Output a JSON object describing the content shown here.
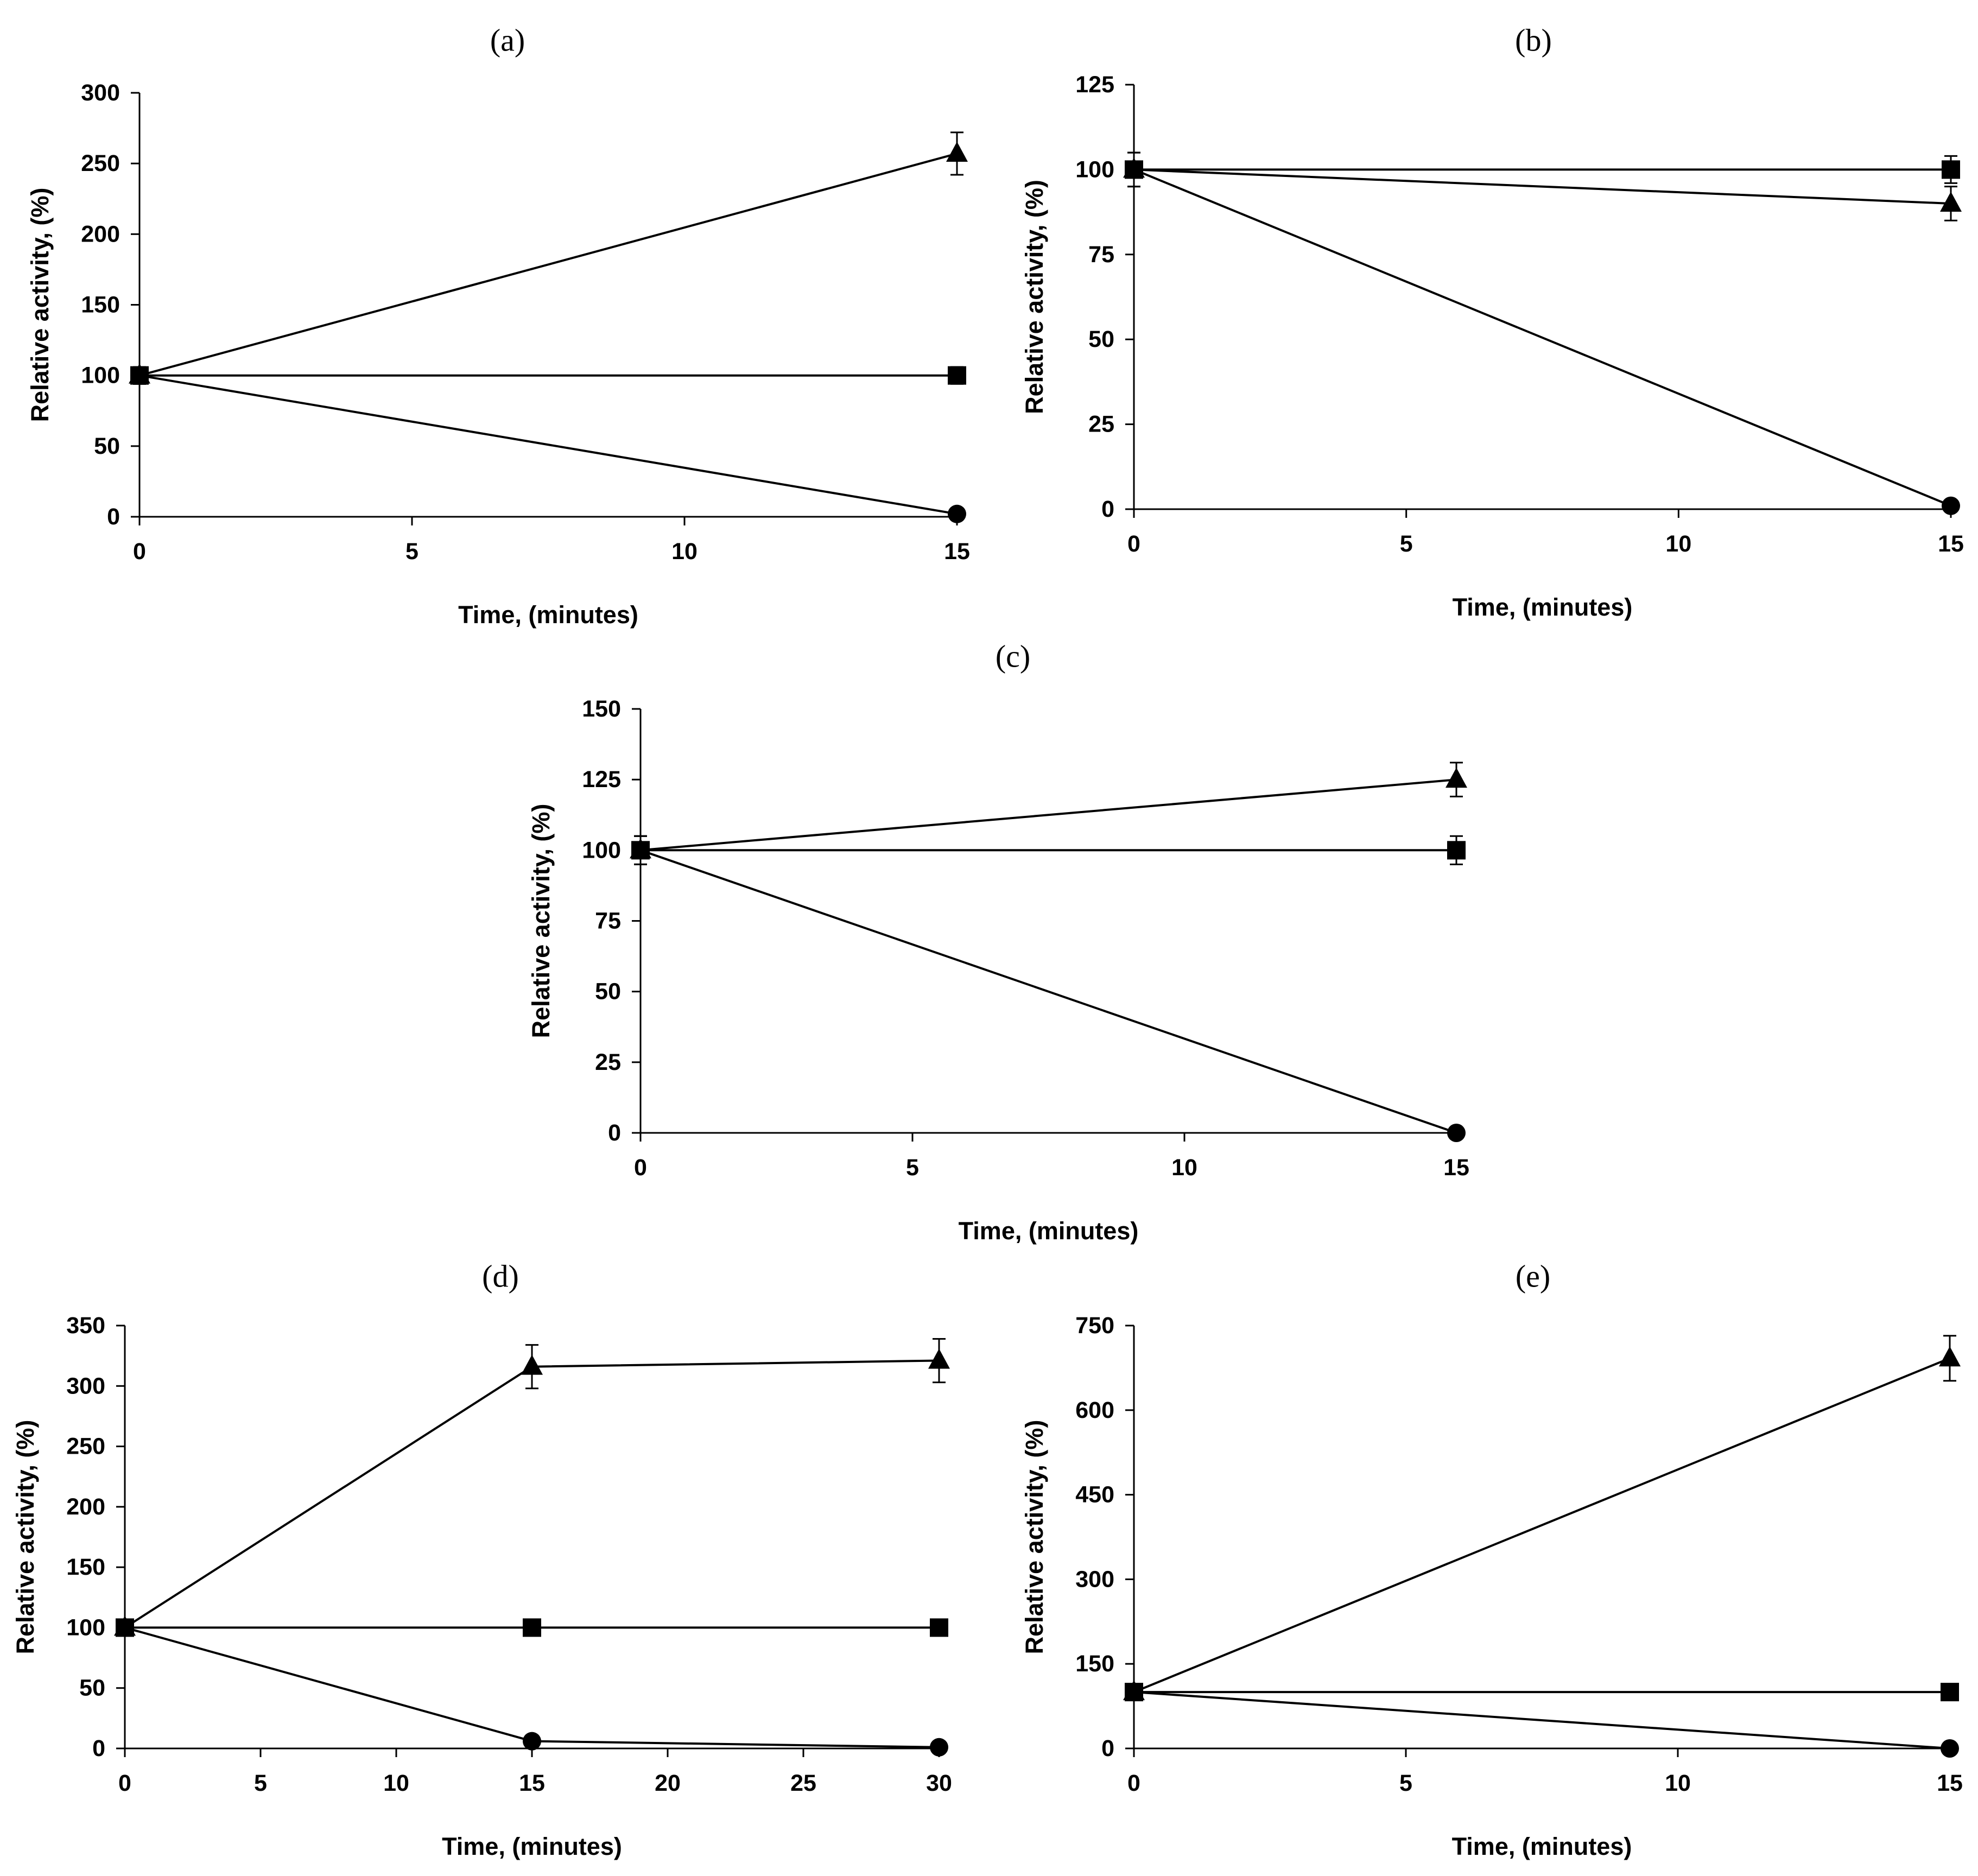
{
  "chart_data": [
    {
      "id": "a",
      "label": "(a)",
      "type": "line",
      "xlabel": "Time, (minutes)",
      "ylabel": "Relative activity, (%)",
      "xlim": [
        0,
        15
      ],
      "ylim": [
        0,
        300
      ],
      "xticks": [
        0,
        5,
        10,
        15
      ],
      "yticks": [
        0,
        50,
        100,
        150,
        200,
        250,
        300
      ],
      "x": [
        0,
        15
      ],
      "series": [
        {
          "name": "triangle",
          "marker": "triangle",
          "values": [
            100,
            257
          ],
          "errors": [
            6,
            15
          ]
        },
        {
          "name": "square",
          "marker": "square",
          "values": [
            100,
            100
          ],
          "errors": [
            6,
            6
          ]
        },
        {
          "name": "circle",
          "marker": "circle",
          "values": [
            100,
            2
          ],
          "errors": [
            6,
            1
          ]
        }
      ]
    },
    {
      "id": "b",
      "label": "(b)",
      "type": "line",
      "xlabel": "Time, (minutes)",
      "ylabel": "Relative activity, (%)",
      "xlim": [
        0,
        15
      ],
      "ylim": [
        0,
        125
      ],
      "xticks": [
        0,
        5,
        10,
        15
      ],
      "yticks": [
        0,
        25,
        50,
        75,
        100,
        125
      ],
      "x": [
        0,
        15
      ],
      "series": [
        {
          "name": "triangle",
          "marker": "triangle",
          "values": [
            100,
            90
          ],
          "errors": [
            5,
            5
          ]
        },
        {
          "name": "square",
          "marker": "square",
          "values": [
            100,
            100
          ],
          "errors": [
            5,
            4
          ]
        },
        {
          "name": "circle",
          "marker": "circle",
          "values": [
            100,
            1
          ],
          "errors": [
            5,
            0.5
          ]
        }
      ]
    },
    {
      "id": "c",
      "label": "(c)",
      "type": "line",
      "xlabel": "Time, (minutes)",
      "ylabel": "Relative activity, (%)",
      "xlim": [
        0,
        15
      ],
      "ylim": [
        0,
        150
      ],
      "xticks": [
        0,
        5,
        10,
        15
      ],
      "yticks": [
        0,
        25,
        50,
        75,
        100,
        125,
        150
      ],
      "x": [
        0,
        15
      ],
      "series": [
        {
          "name": "triangle",
          "marker": "triangle",
          "values": [
            100,
            125
          ],
          "errors": [
            5,
            6
          ]
        },
        {
          "name": "square",
          "marker": "square",
          "values": [
            100,
            100
          ],
          "errors": [
            5,
            5
          ]
        },
        {
          "name": "circle",
          "marker": "circle",
          "values": [
            100,
            0
          ],
          "errors": [
            5,
            0.5
          ]
        }
      ]
    },
    {
      "id": "d",
      "label": "(d)",
      "type": "line",
      "xlabel": "Time, (minutes)",
      "ylabel": "Relative activity, (%)",
      "xlim": [
        0,
        30
      ],
      "ylim": [
        0,
        350
      ],
      "xticks": [
        0,
        5,
        10,
        15,
        20,
        25,
        30
      ],
      "yticks": [
        0,
        50,
        100,
        150,
        200,
        250,
        300,
        350
      ],
      "x": [
        0,
        15,
        30
      ],
      "series": [
        {
          "name": "triangle",
          "marker": "triangle",
          "values": [
            100,
            316,
            321
          ],
          "errors": [
            5,
            18,
            18
          ]
        },
        {
          "name": "square",
          "marker": "square",
          "values": [
            100,
            100,
            100
          ],
          "errors": [
            5,
            5,
            5
          ]
        },
        {
          "name": "circle",
          "marker": "circle",
          "values": [
            100,
            6,
            1
          ],
          "errors": [
            5,
            2,
            1
          ]
        }
      ]
    },
    {
      "id": "e",
      "label": "(e)",
      "type": "line",
      "xlabel": "Time, (minutes)",
      "ylabel": "Relative activity, (%)",
      "xlim": [
        0,
        15
      ],
      "ylim": [
        0,
        750
      ],
      "xticks": [
        0,
        5,
        10,
        15
      ],
      "yticks": [
        0,
        150,
        300,
        450,
        600,
        750
      ],
      "x": [
        0,
        15
      ],
      "series": [
        {
          "name": "triangle",
          "marker": "triangle",
          "values": [
            100,
            692
          ],
          "errors": [
            6,
            40
          ]
        },
        {
          "name": "square",
          "marker": "square",
          "values": [
            100,
            100
          ],
          "errors": [
            6,
            6
          ]
        },
        {
          "name": "circle",
          "marker": "circle",
          "values": [
            100,
            0
          ],
          "errors": [
            6,
            2
          ]
        }
      ]
    }
  ]
}
